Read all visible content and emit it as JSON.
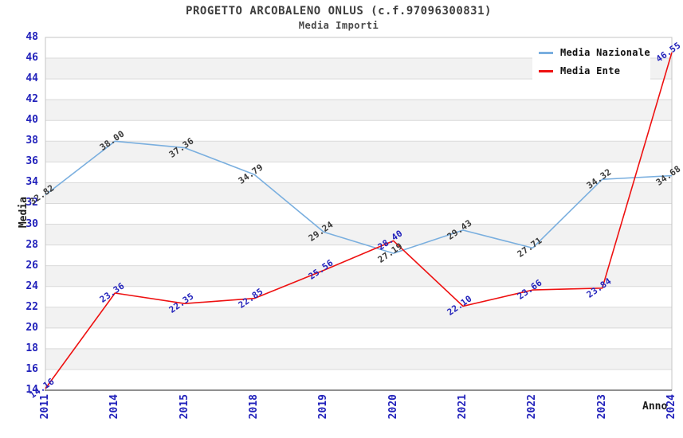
{
  "chart_data": {
    "type": "line",
    "title": "PROGETTO ARCOBALENO ONLUS (c.f.97096300831)",
    "subtitle": "Media Importi",
    "xlabel": "Anno",
    "ylabel": "Media",
    "categories": [
      "2011",
      "2014",
      "2015",
      "2018",
      "2019",
      "2020",
      "2021",
      "2022",
      "2023",
      "2024"
    ],
    "ylim": [
      14,
      48
    ],
    "ytick_step": 2,
    "grid": "horizontal-bands",
    "legend_position": "top-right",
    "band_colors": [
      "#ffffff",
      "#f2f2f2"
    ],
    "gridline_color": "#d9d9d9",
    "border_color": "#c6c6c6",
    "axis_line_color": "#4d4d4d",
    "tick_label_color": "#2222bb",
    "series": [
      {
        "name": "Media Nazionale",
        "color": "#7aafdf",
        "label_color": "#3a3a3a",
        "values": [
          32.82,
          38.0,
          37.36,
          34.79,
          29.24,
          27.19,
          29.43,
          27.71,
          34.32,
          34.68
        ]
      },
      {
        "name": "Media Ente",
        "color": "#ee1111",
        "label_color": "#2222bb",
        "values": [
          14.16,
          23.36,
          22.35,
          22.85,
          25.56,
          28.4,
          22.1,
          23.66,
          23.84,
          46.55
        ]
      }
    ]
  }
}
